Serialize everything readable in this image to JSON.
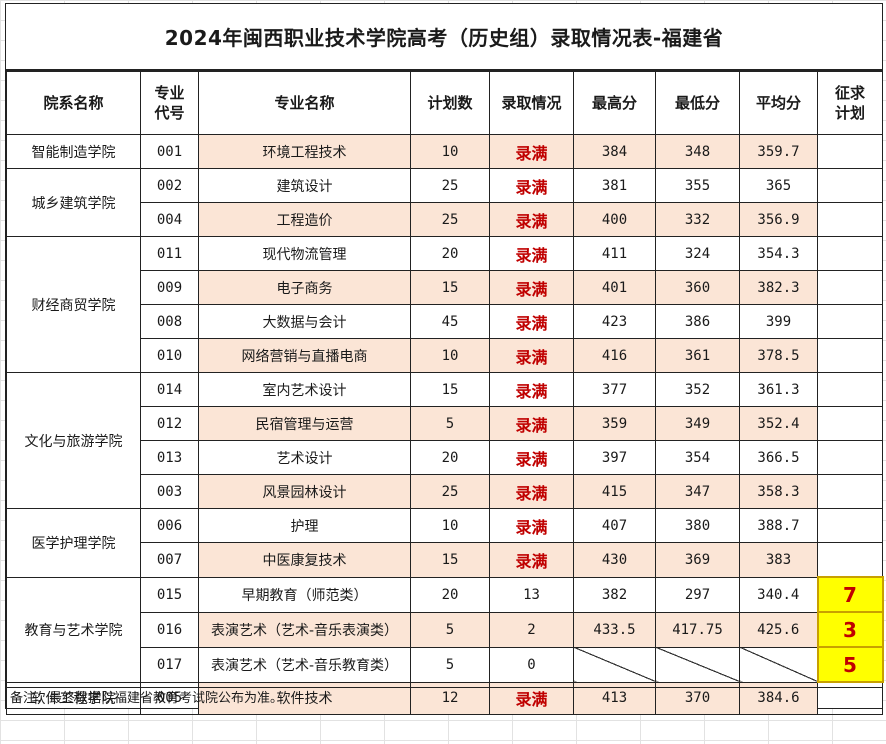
{
  "title": "2024年闽西职业技术学院高考（历史组）录取情况表-福建省",
  "headers": {
    "dept": "院系名称",
    "code_l1": "专业",
    "code_l2": "代号",
    "major": "专业名称",
    "plan": "计划数",
    "status": "录取情况",
    "max": "最高分",
    "min": "最低分",
    "avg": "平均分",
    "extra_l1": "征求",
    "extra_l2": "计划"
  },
  "departments": [
    "智能制造学院",
    "城乡建筑学院",
    "财经商贸学院",
    "文化与旅游学院",
    "医学护理学院",
    "教育与艺术学院",
    "软件工程学院"
  ],
  "rows": [
    {
      "code": "001",
      "major": "环境工程技术",
      "plan": "10",
      "status": "录满",
      "max": "384",
      "min": "348",
      "avg": "359.7",
      "extra": ""
    },
    {
      "code": "002",
      "major": "建筑设计",
      "plan": "25",
      "status": "录满",
      "max": "381",
      "min": "355",
      "avg": "365",
      "extra": ""
    },
    {
      "code": "004",
      "major": "工程造价",
      "plan": "25",
      "status": "录满",
      "max": "400",
      "min": "332",
      "avg": "356.9",
      "extra": ""
    },
    {
      "code": "011",
      "major": "现代物流管理",
      "plan": "20",
      "status": "录满",
      "max": "411",
      "min": "324",
      "avg": "354.3",
      "extra": ""
    },
    {
      "code": "009",
      "major": "电子商务",
      "plan": "15",
      "status": "录满",
      "max": "401",
      "min": "360",
      "avg": "382.3",
      "extra": ""
    },
    {
      "code": "008",
      "major": "大数据与会计",
      "plan": "45",
      "status": "录满",
      "max": "423",
      "min": "386",
      "avg": "399",
      "extra": ""
    },
    {
      "code": "010",
      "major": "网络营销与直播电商",
      "plan": "10",
      "status": "录满",
      "max": "416",
      "min": "361",
      "avg": "378.5",
      "extra": ""
    },
    {
      "code": "014",
      "major": "室内艺术设计",
      "plan": "15",
      "status": "录满",
      "max": "377",
      "min": "352",
      "avg": "361.3",
      "extra": ""
    },
    {
      "code": "012",
      "major": "民宿管理与运营",
      "plan": "5",
      "status": "录满",
      "max": "359",
      "min": "349",
      "avg": "352.4",
      "extra": ""
    },
    {
      "code": "013",
      "major": "艺术设计",
      "plan": "20",
      "status": "录满",
      "max": "397",
      "min": "354",
      "avg": "366.5",
      "extra": ""
    },
    {
      "code": "003",
      "major": "风景园林设计",
      "plan": "25",
      "status": "录满",
      "max": "415",
      "min": "347",
      "avg": "358.3",
      "extra": ""
    },
    {
      "code": "006",
      "major": "护理",
      "plan": "10",
      "status": "录满",
      "max": "407",
      "min": "380",
      "avg": "388.7",
      "extra": ""
    },
    {
      "code": "007",
      "major": "中医康复技术",
      "plan": "15",
      "status": "录满",
      "max": "430",
      "min": "369",
      "avg": "383",
      "extra": ""
    },
    {
      "code": "015",
      "major": "早期教育（师范类）",
      "plan": "20",
      "status": "13",
      "max": "382",
      "min": "297",
      "avg": "340.4",
      "extra": "7"
    },
    {
      "code": "016",
      "major": "表演艺术（艺术-音乐表演类）",
      "plan": "5",
      "status": "2",
      "max": "433.5",
      "min": "417.75",
      "avg": "425.6",
      "extra": "3"
    },
    {
      "code": "017",
      "major": "表演艺术（艺术-音乐教育类）",
      "plan": "5",
      "status": "0",
      "max": "",
      "min": "",
      "avg": "",
      "extra": "5"
    },
    {
      "code": "005",
      "major": "软件技术",
      "plan": "12",
      "status": "录满",
      "max": "413",
      "min": "370",
      "avg": "384.6",
      "extra": ""
    }
  ],
  "note": "备注：最终数据以福建省教育考试院公布为准。",
  "colors": {
    "full_status": "#c00000",
    "row_shade": "#fbe5d6",
    "highlight": "#ffff00"
  }
}
